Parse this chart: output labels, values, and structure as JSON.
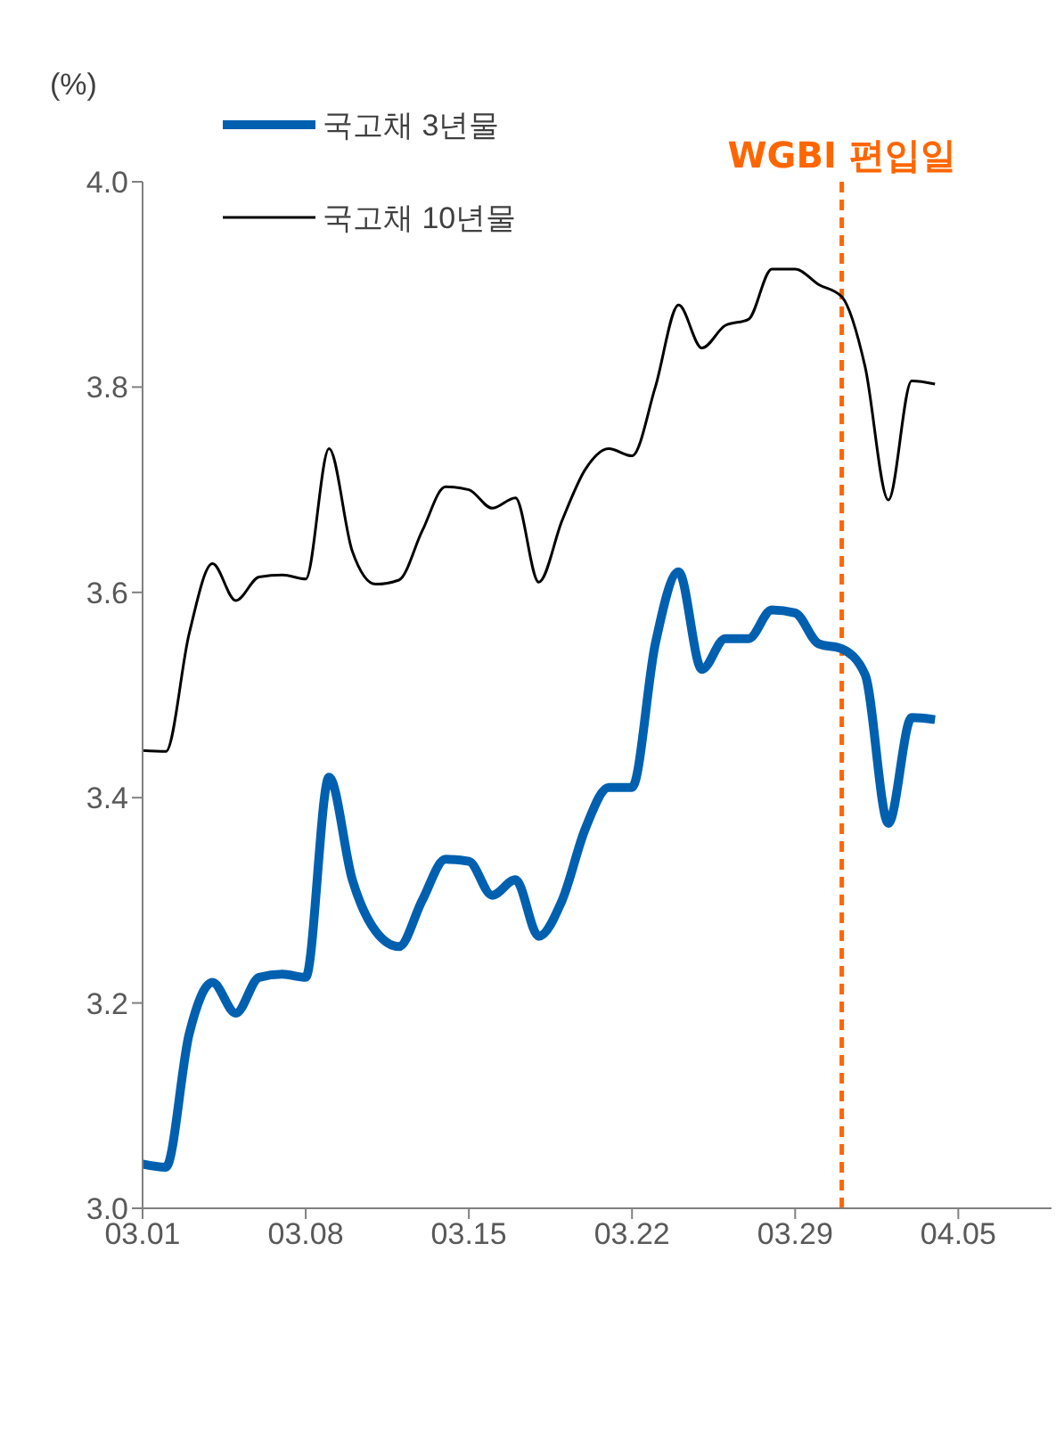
{
  "chart_data": {
    "type": "line",
    "ylabel": "(%)",
    "x": [
      "--03-01",
      "--03-02",
      "--03-03",
      "--03-04",
      "--03-05",
      "--03-06",
      "--03-07",
      "--03-08",
      "--03-09",
      "--03-10",
      "--03-11",
      "--03-12",
      "--03-13",
      "--03-14",
      "--03-15",
      "--03-16",
      "--03-17",
      "--03-18",
      "--03-19",
      "--03-20",
      "--03-21",
      "--03-22",
      "--03-23",
      "--03-24",
      "--03-25",
      "--03-26",
      "--03-27",
      "--03-28",
      "--03-29",
      "--03-30",
      "--03-31",
      "--04-01",
      "--04-02",
      "--04-03",
      "--04-04"
    ],
    "series": [
      {
        "name": "국고채 3년물",
        "color": "#0060b0",
        "values": [
          3.043,
          3.04,
          3.17,
          3.22,
          3.19,
          3.225,
          3.228,
          3.225,
          3.42,
          3.32,
          3.27,
          3.255,
          3.3,
          3.34,
          3.338,
          3.305,
          3.32,
          3.265,
          3.3,
          3.37,
          3.41,
          3.41,
          3.55,
          3.62,
          3.525,
          3.555,
          3.555,
          3.583,
          3.58,
          3.55,
          3.545,
          3.52,
          3.375,
          3.478,
          3.476
        ]
      },
      {
        "name": "국고채 10년물",
        "color": "#000000",
        "values": [
          3.446,
          3.445,
          3.56,
          3.628,
          3.592,
          3.615,
          3.617,
          3.613,
          3.74,
          3.64,
          3.608,
          3.612,
          3.66,
          3.703,
          3.7,
          3.682,
          3.692,
          3.61,
          3.67,
          3.72,
          3.74,
          3.733,
          3.8,
          3.88,
          3.838,
          3.86,
          3.866,
          3.915,
          3.915,
          3.9,
          3.888,
          3.82,
          3.69,
          3.806,
          3.803
        ]
      }
    ],
    "xlim": [
      "--03-01",
      "--04-09"
    ],
    "xticks": [
      {
        "value": "--03-01",
        "label": "03.01"
      },
      {
        "value": "--03-08",
        "label": "03.08"
      },
      {
        "value": "--03-15",
        "label": "03.15"
      },
      {
        "value": "--03-22",
        "label": "03.22"
      },
      {
        "value": "--03-29",
        "label": "03.29"
      },
      {
        "value": "--04-05",
        "label": "04.05"
      }
    ],
    "ylim": [
      3.0,
      4.0
    ],
    "yticks": [
      {
        "value": 3.0,
        "label": "3.0"
      },
      3.2,
      3.4,
      3.6,
      3.8,
      {
        "value": 4.0,
        "label": "4.0"
      }
    ],
    "ref_lines": [
      {
        "axis": "x",
        "value": "--03-31",
        "label": "WGBI 편입일",
        "color": "#ff6600",
        "line_style": "dashed"
      }
    ],
    "legend": "top left",
    "marker": "none",
    "line_style": "solid"
  }
}
